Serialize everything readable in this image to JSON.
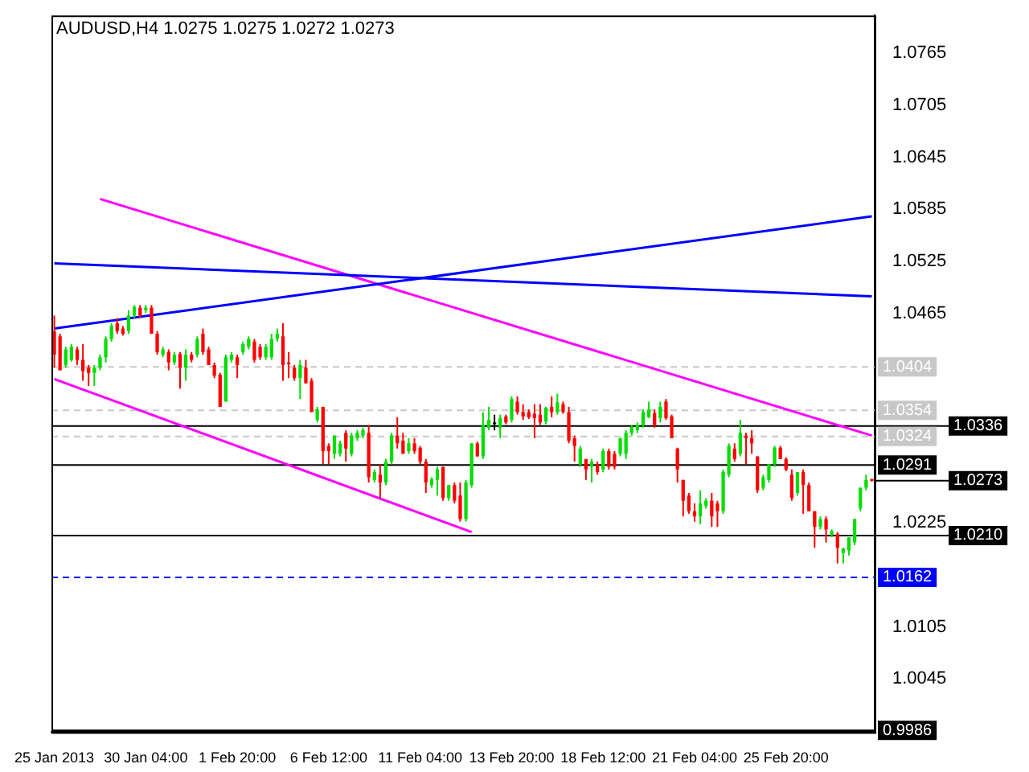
{
  "chart_data": {
    "type": "candlestick",
    "title": "AUDUSD,H4 1.0275 1.0275 1.0272 1.0273",
    "categories": [
      "25 Jan 2013",
      null,
      null,
      null,
      null,
      null,
      null,
      null,
      null,
      null,
      null,
      null,
      null,
      null,
      null,
      null,
      "30 Jan 04:00",
      null,
      null,
      null,
      null,
      null,
      null,
      null,
      null,
      null,
      null,
      null,
      null,
      null,
      null,
      null,
      "1 Feb 20:00",
      null,
      null,
      null,
      null,
      null,
      null,
      null,
      null,
      null,
      null,
      null,
      null,
      null,
      null,
      null,
      "6 Feb 12:00",
      null,
      null,
      null,
      null,
      null,
      null,
      null,
      null,
      null,
      null,
      null,
      null,
      null,
      null,
      null,
      "11 Feb 04:00",
      null,
      null,
      null,
      null,
      null,
      null,
      null,
      null,
      null,
      null,
      null,
      null,
      null,
      null,
      null,
      "13 Feb 20:00",
      null,
      null,
      null,
      null,
      null,
      null,
      null,
      null,
      null,
      null,
      null,
      null,
      null,
      null,
      null,
      "18 Feb 12:00",
      null,
      null,
      null,
      null,
      null,
      null,
      null,
      null,
      null,
      null,
      null,
      null,
      null,
      null,
      null,
      "21 Feb 04:00",
      null,
      null,
      null,
      null,
      null,
      null,
      null,
      null,
      null,
      null,
      null,
      null,
      null,
      null,
      null,
      "25 Feb 20:00",
      null,
      null,
      null,
      null,
      null,
      null,
      null,
      null,
      null,
      null,
      null,
      null,
      null,
      null,
      null
    ],
    "ohlc": [
      [
        1.0445,
        1.0463,
        1.0403,
        1.0418
      ],
      [
        1.0439,
        1.0442,
        1.04,
        1.04
      ],
      [
        1.0406,
        1.0427,
        1.0403,
        1.0424
      ],
      [
        1.0412,
        1.043,
        1.041,
        1.0427
      ],
      [
        1.0424,
        1.0427,
        1.0406,
        1.0412
      ],
      [
        1.0412,
        1.043,
        1.0388,
        1.0399
      ],
      [
        1.0403,
        1.0406,
        1.0382,
        1.0397
      ],
      [
        1.0397,
        1.0406,
        1.0382,
        1.0403
      ],
      [
        1.0403,
        1.0418,
        1.04,
        1.0415
      ],
      [
        1.0415,
        1.0439,
        1.0409,
        1.0436
      ],
      [
        1.0436,
        1.0454,
        1.0433,
        1.0451
      ],
      [
        1.0454,
        1.046,
        1.0442,
        1.0445
      ],
      [
        1.0448,
        1.0451,
        1.044,
        1.0442
      ],
      [
        1.0445,
        1.0469,
        1.0442,
        1.0463
      ],
      [
        1.0463,
        1.0475,
        1.046,
        1.0473
      ],
      [
        1.0472,
        1.0475,
        1.046,
        1.0463
      ],
      [
        1.0469,
        1.0475,
        1.0466,
        1.0472
      ],
      [
        1.0472,
        1.0475,
        1.0442,
        1.0442
      ],
      [
        1.0442,
        1.0445,
        1.0418,
        1.0421
      ],
      [
        1.0418,
        1.0427,
        1.0415,
        1.0424
      ],
      [
        1.0421,
        1.0424,
        1.04,
        1.0409
      ],
      [
        1.0409,
        1.0421,
        1.0406,
        1.0418
      ],
      [
        1.0419,
        1.0421,
        1.0379,
        1.0403
      ],
      [
        1.0403,
        1.0424,
        1.0388,
        1.0418
      ],
      [
        1.0418,
        1.0421,
        1.0409,
        1.0412
      ],
      [
        1.0418,
        1.0439,
        1.0415,
        1.0436
      ],
      [
        1.0442,
        1.0448,
        1.0418,
        1.0421
      ],
      [
        1.0424,
        1.0427,
        1.0406,
        1.0406
      ],
      [
        1.0406,
        1.0409,
        1.0391,
        1.0394
      ],
      [
        1.0395,
        1.0397,
        1.0358,
        1.0358
      ],
      [
        1.0364,
        1.0418,
        1.0364,
        1.0415
      ],
      [
        1.0412,
        1.0421,
        1.0409,
        1.0418
      ],
      [
        1.0415,
        1.0418,
        1.0391,
        1.0406
      ],
      [
        1.0421,
        1.0433,
        1.0418,
        1.043
      ],
      [
        1.0427,
        1.0439,
        1.0424,
        1.0436
      ],
      [
        1.0433,
        1.0436,
        1.0409,
        1.0412
      ],
      [
        1.0427,
        1.043,
        1.0412,
        1.0415
      ],
      [
        1.0415,
        1.043,
        1.0412,
        1.0427
      ],
      [
        1.0415,
        1.0442,
        1.0412,
        1.0436
      ],
      [
        1.0436,
        1.0448,
        1.0433,
        1.0442
      ],
      [
        1.0439,
        1.0454,
        1.0388,
        1.0406
      ],
      [
        1.0409,
        1.0421,
        1.0391,
        1.0407
      ],
      [
        1.0403,
        1.0406,
        1.0388,
        1.0391
      ],
      [
        1.0391,
        1.0412,
        1.0367,
        1.0406
      ],
      [
        1.0403,
        1.0412,
        1.0385,
        1.0385
      ],
      [
        1.0388,
        1.0391,
        1.0352,
        1.0352
      ],
      [
        1.0343,
        1.0358,
        1.034,
        1.0355
      ],
      [
        1.0358,
        1.0358,
        1.0292,
        1.0307
      ],
      [
        1.0313,
        1.0316,
        1.0292,
        1.0307
      ],
      [
        1.0304,
        1.0325,
        1.0298,
        1.0325
      ],
      [
        1.0304,
        1.0319,
        1.0301,
        1.0316
      ],
      [
        1.0328,
        1.0331,
        1.0295,
        1.031
      ],
      [
        1.0304,
        1.0328,
        1.0301,
        1.0325
      ],
      [
        1.0322,
        1.0331,
        1.0319,
        1.0328
      ],
      [
        1.0325,
        1.0334,
        1.0322,
        1.0331
      ],
      [
        1.0328,
        1.0337,
        1.0271,
        1.0277
      ],
      [
        1.0274,
        1.0286,
        1.0271,
        1.0283
      ],
      [
        1.028,
        1.0292,
        1.0253,
        1.0271
      ],
      [
        1.0271,
        1.0298,
        1.0268,
        1.0295
      ],
      [
        1.0295,
        1.0328,
        1.0292,
        1.0325
      ],
      [
        1.0325,
        1.0346,
        1.031,
        1.0316
      ],
      [
        1.0319,
        1.0328,
        1.0304,
        1.0304
      ],
      [
        1.0307,
        1.0322,
        1.0304,
        1.0316
      ],
      [
        1.0316,
        1.0322,
        1.0304,
        1.0307
      ],
      [
        1.0311,
        1.0313,
        1.0292,
        1.0295
      ],
      [
        1.0295,
        1.0298,
        1.0259,
        1.0271
      ],
      [
        1.0268,
        1.0277,
        1.0265,
        1.0275
      ],
      [
        1.0274,
        1.0289,
        1.0256,
        1.0286
      ],
      [
        1.0289,
        1.0289,
        1.025,
        1.0253
      ],
      [
        1.0253,
        1.0268,
        1.025,
        1.0268
      ],
      [
        1.0268,
        1.0271,
        1.0247,
        1.025
      ],
      [
        1.0256,
        1.0271,
        1.0226,
        1.0229
      ],
      [
        1.0229,
        1.0274,
        1.0226,
        1.0271
      ],
      [
        1.0268,
        1.0316,
        1.0265,
        1.0316
      ],
      [
        1.0316,
        1.0318,
        1.0301,
        1.0301
      ],
      [
        1.0301,
        1.0352,
        1.0298,
        1.0337
      ],
      [
        1.0334,
        1.0358,
        1.0331,
        1.0343
      ],
      [
        1.034,
        1.0349,
        1.0331,
        1.034
      ],
      [
        1.0334,
        1.0349,
        1.0322,
        1.0345
      ],
      [
        1.0347,
        1.0349,
        1.0338,
        1.034
      ],
      [
        1.0343,
        1.037,
        1.034,
        1.0367
      ],
      [
        1.0364,
        1.037,
        1.0349,
        1.0352
      ],
      [
        1.0352,
        1.0361,
        1.0343,
        1.0347
      ],
      [
        1.0352,
        1.0355,
        1.0344,
        1.0346
      ],
      [
        1.035,
        1.0361,
        1.0322,
        1.0345
      ],
      [
        1.0349,
        1.0361,
        1.0337,
        1.034
      ],
      [
        1.0341,
        1.0358,
        1.0338,
        1.0357
      ],
      [
        1.0358,
        1.037,
        1.0346,
        1.0352
      ],
      [
        1.0352,
        1.0373,
        1.0349,
        1.0363
      ],
      [
        1.0361,
        1.0364,
        1.035,
        1.0352
      ],
      [
        1.0352,
        1.0358,
        1.0316,
        1.0319
      ],
      [
        1.0322,
        1.0325,
        1.0295,
        1.0313
      ],
      [
        1.0292,
        1.0313,
        1.0289,
        1.031
      ],
      [
        1.0298,
        1.0298,
        1.0274,
        1.0286
      ],
      [
        1.0289,
        1.0298,
        1.0271,
        1.0295
      ],
      [
        1.0292,
        1.0295,
        1.028,
        1.0283
      ],
      [
        1.0286,
        1.031,
        1.0283,
        1.0307
      ],
      [
        1.0307,
        1.031,
        1.0286,
        1.0289
      ],
      [
        1.0304,
        1.0307,
        1.0286,
        1.0289
      ],
      [
        1.0304,
        1.0322,
        1.0301,
        1.0322
      ],
      [
        1.0304,
        1.0331,
        1.0298,
        1.0328
      ],
      [
        1.0328,
        1.0337,
        1.0325,
        1.0335
      ],
      [
        1.0331,
        1.034,
        1.0328,
        1.0337
      ],
      [
        1.0337,
        1.0355,
        1.0334,
        1.0352
      ],
      [
        1.0346,
        1.0364,
        1.0345,
        1.0355
      ],
      [
        1.0351,
        1.0355,
        1.0334,
        1.0337
      ],
      [
        1.0345,
        1.0364,
        1.034,
        1.0358
      ],
      [
        1.0364,
        1.0367,
        1.0343,
        1.0345
      ],
      [
        1.0347,
        1.0349,
        1.0322,
        1.0322
      ],
      [
        1.031,
        1.0311,
        1.0271,
        1.0286
      ],
      [
        1.0274,
        1.0274,
        1.0232,
        1.025
      ],
      [
        1.0256,
        1.0259,
        1.0235,
        1.0238
      ],
      [
        1.0238,
        1.0247,
        1.0226,
        1.0232
      ],
      [
        1.0232,
        1.0262,
        1.0223,
        1.0247
      ],
      [
        1.0244,
        1.0253,
        1.0241,
        1.025
      ],
      [
        1.025,
        1.0259,
        1.022,
        1.0232
      ],
      [
        1.0247,
        1.025,
        1.022,
        1.0238
      ],
      [
        1.0238,
        1.0286,
        1.0235,
        1.0283
      ],
      [
        1.028,
        1.0316,
        1.0277,
        1.0313
      ],
      [
        1.031,
        1.0316,
        1.0295,
        1.0298
      ],
      [
        1.0304,
        1.0343,
        1.0301,
        1.0328
      ],
      [
        1.0325,
        1.0328,
        1.0292,
        1.0322
      ],
      [
        1.0322,
        1.0331,
        1.0304,
        1.0316
      ],
      [
        1.0301,
        1.0301,
        1.0259,
        1.0262
      ],
      [
        1.0265,
        1.028,
        1.0262,
        1.0277
      ],
      [
        1.0274,
        1.0292,
        1.0271,
        1.0292
      ],
      [
        1.0292,
        1.0313,
        1.0289,
        1.0311
      ],
      [
        1.0311,
        1.0313,
        1.0298,
        1.0298
      ],
      [
        1.0298,
        1.03,
        1.0284,
        1.0286
      ],
      [
        1.028,
        1.0286,
        1.025,
        1.0253
      ],
      [
        1.0259,
        1.0283,
        1.0256,
        1.0283
      ],
      [
        1.0283,
        1.0286,
        1.0235,
        1.0268
      ],
      [
        1.0268,
        1.0271,
        1.0238,
        1.0238
      ],
      [
        1.0238,
        1.0238,
        1.0196,
        1.022
      ],
      [
        1.022,
        1.0232,
        1.0217,
        1.0229
      ],
      [
        1.0229,
        1.0232,
        1.0202,
        1.0217
      ],
      [
        1.0211,
        1.0217,
        1.0208,
        1.0215
      ],
      [
        1.0212,
        1.0214,
        1.0178,
        1.0196
      ],
      [
        1.019,
        1.0196,
        1.0178,
        1.0195
      ],
      [
        1.0193,
        1.0208,
        1.0187,
        1.0208
      ],
      [
        1.0202,
        1.0229,
        1.0199,
        1.0229
      ],
      [
        1.0241,
        1.0265,
        1.0238,
        1.0265
      ],
      [
        1.0265,
        1.028,
        1.0262,
        1.0274
      ],
      [
        1.0275,
        1.0275,
        1.0272,
        1.0273
      ]
    ],
    "series": [
      {
        "type": "line",
        "color": "#0000ff",
        "values": [
          1.0523,
          null,
          null,
          null,
          null,
          null,
          null,
          null,
          null,
          null,
          null,
          null,
          null,
          null,
          null,
          null,
          null,
          null,
          null,
          null,
          null,
          null,
          null,
          null,
          null,
          null,
          null,
          null,
          null,
          null,
          null,
          null,
          null,
          null,
          null,
          null,
          null,
          null,
          null,
          null,
          null,
          null,
          null,
          null,
          null,
          null,
          null,
          null,
          null,
          null,
          null,
          null,
          null,
          null,
          null,
          null,
          null,
          null,
          null,
          null,
          null,
          null,
          null,
          null,
          null,
          null,
          null,
          null,
          null,
          null,
          null,
          null,
          null,
          null,
          null,
          null,
          null,
          null,
          null,
          null,
          null,
          null,
          null,
          null,
          null,
          null,
          null,
          null,
          null,
          null,
          null,
          null,
          null,
          null,
          null,
          null,
          null,
          null,
          null,
          null,
          null,
          null,
          null,
          null,
          null,
          null,
          null,
          null,
          null,
          null,
          null,
          null,
          null,
          null,
          null,
          null,
          null,
          null,
          null,
          null,
          null,
          null,
          null,
          null,
          null,
          null,
          null,
          null,
          null,
          null,
          null,
          null,
          null,
          null,
          null,
          null,
          null,
          null,
          null,
          null,
          null,
          null,
          null,
          1.0485
        ]
      },
      {
        "type": "line",
        "color": "#0000ff",
        "values": [
          1.0448,
          null,
          null,
          null,
          null,
          null,
          null,
          null,
          null,
          null,
          null,
          null,
          null,
          null,
          null,
          null,
          null,
          null,
          null,
          null,
          null,
          null,
          null,
          null,
          null,
          null,
          null,
          null,
          null,
          null,
          null,
          null,
          null,
          null,
          null,
          null,
          null,
          null,
          null,
          null,
          null,
          null,
          null,
          null,
          null,
          null,
          null,
          null,
          null,
          null,
          null,
          null,
          null,
          null,
          null,
          null,
          null,
          null,
          null,
          null,
          null,
          null,
          null,
          null,
          null,
          null,
          null,
          null,
          null,
          null,
          null,
          null,
          null,
          null,
          null,
          null,
          null,
          null,
          null,
          null,
          null,
          null,
          null,
          null,
          null,
          null,
          null,
          null,
          null,
          null,
          null,
          null,
          null,
          null,
          null,
          null,
          null,
          null,
          null,
          null,
          null,
          null,
          null,
          null,
          null,
          null,
          null,
          null,
          null,
          null,
          null,
          null,
          null,
          null,
          null,
          null,
          null,
          null,
          null,
          null,
          null,
          null,
          null,
          null,
          null,
          null,
          null,
          null,
          null,
          null,
          null,
          null,
          null,
          null,
          null,
          null,
          null,
          null,
          null,
          null,
          null,
          null,
          null,
          1.0577
        ]
      },
      {
        "type": "line",
        "color": "#ff00ff",
        "values": [
          null,
          null,
          null,
          null,
          null,
          null,
          null,
          null,
          1.0597,
          null,
          null,
          null,
          null,
          null,
          null,
          null,
          null,
          null,
          null,
          null,
          null,
          null,
          null,
          null,
          null,
          null,
          null,
          null,
          null,
          null,
          null,
          null,
          null,
          null,
          null,
          null,
          null,
          null,
          null,
          null,
          null,
          null,
          null,
          null,
          null,
          null,
          null,
          null,
          null,
          null,
          null,
          null,
          null,
          null,
          null,
          null,
          null,
          null,
          null,
          null,
          null,
          null,
          null,
          null,
          null,
          null,
          null,
          null,
          null,
          null,
          null,
          null,
          null,
          null,
          null,
          null,
          null,
          null,
          null,
          null,
          null,
          null,
          null,
          null,
          null,
          null,
          null,
          null,
          null,
          null,
          null,
          null,
          null,
          null,
          null,
          null,
          null,
          null,
          null,
          null,
          null,
          null,
          null,
          null,
          null,
          null,
          null,
          null,
          null,
          null,
          null,
          null,
          null,
          null,
          null,
          null,
          null,
          null,
          null,
          null,
          null,
          null,
          null,
          null,
          null,
          null,
          null,
          null,
          null,
          null,
          null,
          null,
          null,
          null,
          null,
          null,
          null,
          null,
          null,
          null,
          null,
          null,
          null,
          1.0325
        ]
      },
      {
        "type": "line",
        "color": "#ff00ff",
        "values": [
          1.039,
          null,
          null,
          null,
          null,
          null,
          null,
          null,
          null,
          null,
          null,
          null,
          null,
          null,
          null,
          null,
          null,
          null,
          null,
          null,
          null,
          null,
          null,
          null,
          null,
          null,
          null,
          null,
          null,
          null,
          null,
          null,
          null,
          null,
          null,
          null,
          null,
          null,
          null,
          null,
          null,
          null,
          null,
          null,
          null,
          null,
          null,
          null,
          null,
          null,
          null,
          null,
          null,
          null,
          null,
          null,
          null,
          null,
          null,
          null,
          null,
          null,
          null,
          null,
          null,
          null,
          null,
          null,
          null,
          null,
          null,
          null,
          null,
          1.0214,
          null,
          null,
          null,
          null,
          null,
          null,
          null,
          null,
          null,
          null,
          null,
          null,
          null,
          null,
          null,
          null,
          null,
          null,
          null,
          null,
          null,
          null,
          null,
          null,
          null,
          null,
          null,
          null,
          null,
          null,
          null,
          null,
          null,
          null,
          null,
          null,
          null,
          null,
          null,
          null,
          null,
          null,
          null,
          null,
          null,
          null,
          null,
          null,
          null,
          null,
          null,
          null,
          null,
          null,
          null,
          null,
          null,
          null,
          null,
          null,
          null,
          null,
          null,
          null,
          null,
          null,
          null,
          null,
          null,
          null
        ]
      }
    ],
    "ref_lines": [
      {
        "axis": "y",
        "value": 1.0404,
        "label": "1.0404",
        "color": "#c8c8c8",
        "line_style": "dashed"
      },
      {
        "axis": "y",
        "value": 1.0354,
        "label": "1.0354",
        "color": "#c8c8c8",
        "line_style": "dashed"
      },
      {
        "axis": "y",
        "value": 1.0336,
        "label": "1.0336",
        "color": "#000000",
        "line_style": "solid"
      },
      {
        "axis": "y",
        "value": 1.0324,
        "label": "1.0324",
        "color": "#c8c8c8",
        "line_style": "dashed"
      },
      {
        "axis": "y",
        "value": 1.0291,
        "label": "1.0291",
        "color": "#000000",
        "line_style": "solid"
      },
      {
        "axis": "y",
        "value": 1.021,
        "label": "1.0210",
        "color": "#000000",
        "line_style": "solid"
      },
      {
        "axis": "y",
        "value": 1.0162,
        "label": "1.0162",
        "color": "#0000ff",
        "line_style": "dashed"
      },
      {
        "axis": "y",
        "value": 0.9986,
        "label": "0.9986",
        "color": "#000000",
        "line_style": "solid"
      }
    ],
    "annotations": [
      "1.0273"
    ],
    "ylim": [
      0.9984,
      1.0808
    ],
    "yticks": [
      1.0045,
      1.0105,
      1.0225,
      1.0465,
      1.0525,
      1.0585,
      1.0645,
      1.0705,
      1.0765
    ],
    "grid": false,
    "legend": false,
    "marker": "none"
  }
}
